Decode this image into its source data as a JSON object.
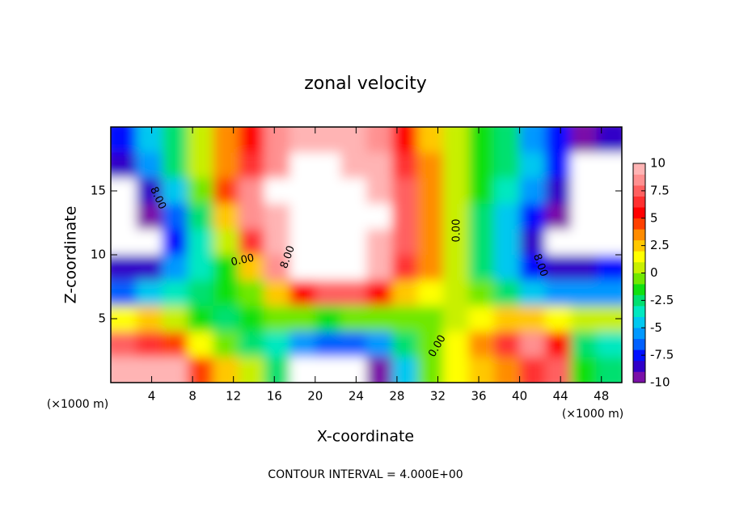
{
  "chart_data": {
    "type": "heatmap",
    "title": "zonal velocity",
    "xlabel": "X-coordinate",
    "ylabel": "Z-coordinate",
    "x_unit_label": "(×1000 m)",
    "y_unit_label": "(×1000 m)",
    "note": "CONTOUR INTERVAL = 4.000E+00",
    "xlim": [
      0,
      50
    ],
    "xticks": [
      4,
      8,
      12,
      16,
      20,
      24,
      28,
      32,
      36,
      40,
      44,
      48
    ],
    "ylim": [
      0,
      20
    ],
    "yticks": [
      5,
      10,
      15
    ],
    "zlim": [
      -10,
      10
    ],
    "zticks": [
      -10,
      -7.5,
      -5,
      -2.5,
      0,
      2.5,
      5,
      7.5,
      10
    ],
    "colormap": [
      "#7a10a8",
      "#3000c8",
      "#0010ff",
      "#0060ff",
      "#0098ff",
      "#00c8f0",
      "#00e8c0",
      "#00e070",
      "#10e010",
      "#70e800",
      "#c8f000",
      "#ffff00",
      "#ffc800",
      "#ff8c00",
      "#ff4000",
      "#ff0000",
      "#ff3030",
      "#ff6060",
      "#ff9090",
      "#ffb4b4"
    ],
    "out_of_range_color": "#ffffff",
    "contour_labels": [
      "8.00",
      "0.00",
      "8.00",
      "0.00",
      "8.00",
      "0.00"
    ],
    "x": [
      1.25,
      3.75,
      6.25,
      8.75,
      11.25,
      13.75,
      16.25,
      18.75,
      21.25,
      23.75,
      26.25,
      28.75,
      31.25,
      33.75,
      36.25,
      38.75,
      41.25,
      43.75,
      46.25,
      48.75
    ],
    "y": [
      19,
      17,
      15,
      13,
      11,
      9,
      7,
      5,
      3,
      1
    ],
    "z": [
      [
        -8,
        -5,
        -3,
        0,
        3,
        5,
        8,
        9,
        10,
        9,
        8,
        5,
        2,
        0,
        -2,
        -3,
        -6,
        -8,
        -10,
        -9
      ],
      [
        -9,
        -6,
        -3,
        0,
        3,
        6,
        8,
        11,
        11,
        10,
        9,
        6,
        3,
        0,
        -2,
        -3,
        -5,
        -8,
        -11,
        -11
      ],
      [
        -11,
        -9,
        -5,
        -1,
        4,
        8,
        11,
        12,
        12,
        12,
        10,
        7,
        3,
        0,
        -2,
        -4,
        -6,
        -9,
        -12,
        -12
      ],
      [
        -12,
        -10,
        -7,
        -3,
        2,
        8,
        9,
        11,
        12,
        12,
        11,
        7,
        3,
        0,
        -3,
        -5,
        -8,
        -10,
        -11,
        -12
      ],
      [
        -12,
        -11,
        -8,
        -4,
        0,
        6,
        9,
        11,
        12,
        12,
        10,
        7,
        3,
        0,
        -3,
        -5,
        -9,
        -11,
        -12,
        -11
      ],
      [
        -9,
        -9,
        -6,
        -4,
        -2,
        2,
        8,
        11,
        12,
        11,
        9,
        6,
        3,
        0,
        -3,
        -5,
        -8,
        -9,
        -9,
        -8
      ],
      [
        -7,
        -5,
        -4,
        -3,
        -2,
        -1,
        2,
        5,
        7,
        7,
        5,
        2,
        1,
        0,
        -1,
        -3,
        -5,
        -6,
        -6,
        -6
      ],
      [
        1,
        2,
        0,
        -2,
        -3,
        -2,
        -1,
        -1,
        -2,
        -1,
        -1,
        -1,
        -1,
        0,
        1,
        2,
        2,
        1,
        0,
        0
      ],
      [
        7,
        6,
        4,
        1,
        -1,
        -3,
        -4,
        -6,
        -7,
        -7,
        -6,
        -3,
        -1,
        1,
        3,
        6,
        8,
        5,
        -3,
        -4
      ],
      [
        9,
        10,
        9,
        4,
        2,
        0,
        -3,
        -11,
        -12,
        -12,
        -10,
        -5,
        -1,
        1,
        2,
        3,
        6,
        7,
        -2,
        -3
      ]
    ]
  }
}
